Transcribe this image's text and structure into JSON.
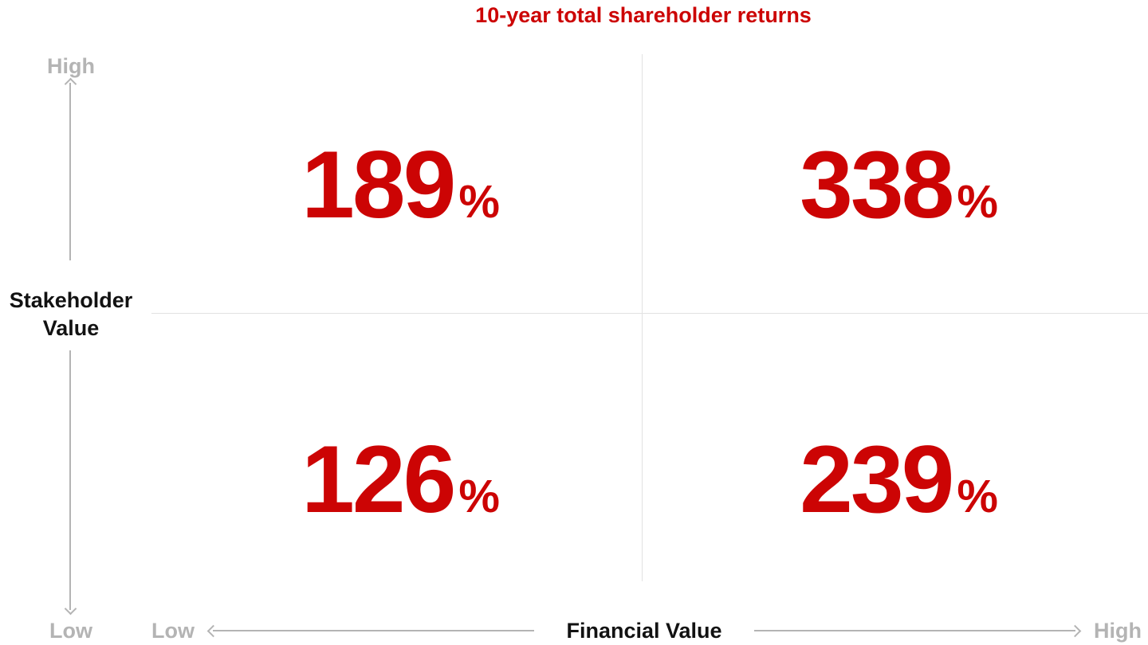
{
  "title": "10-year total shareholder returns",
  "colors": {
    "accent_red": "#cc0404",
    "gray_label": "#b4b4b4",
    "arrow_gray": "#b4b4b4",
    "divider_gray": "#e2e2e2",
    "text_black": "#121212"
  },
  "y_axis": {
    "label_line1": "Stakeholder",
    "label_line2": "Value",
    "high": "High",
    "low": "Low"
  },
  "x_axis": {
    "label": "Financial Value",
    "low": "Low",
    "high": "High"
  },
  "quadrants": {
    "top_left": {
      "value": "189",
      "unit": "%"
    },
    "top_right": {
      "value": "338",
      "unit": "%"
    },
    "bottom_left": {
      "value": "126",
      "unit": "%"
    },
    "bottom_right": {
      "value": "239",
      "unit": "%"
    }
  },
  "chart_data": {
    "type": "heatmap",
    "subtype": "2x2-quadrant-matrix",
    "title": "10-year total shareholder returns",
    "xlabel": "Financial Value",
    "ylabel": "Stakeholder Value",
    "x_categories": [
      "Low",
      "High"
    ],
    "y_categories": [
      "High",
      "Low"
    ],
    "unit": "%",
    "values": [
      {
        "financial_value": "Low",
        "stakeholder_value": "High",
        "return_pct": 189,
        "position": "top-left"
      },
      {
        "financial_value": "High",
        "stakeholder_value": "High",
        "return_pct": 338,
        "position": "top-right"
      },
      {
        "financial_value": "Low",
        "stakeholder_value": "Low",
        "return_pct": 126,
        "position": "bottom-left"
      },
      {
        "financial_value": "High",
        "stakeholder_value": "Low",
        "return_pct": 239,
        "position": "bottom-right"
      }
    ],
    "layout": {
      "grid": "quadrant dividers only",
      "legend": "none",
      "value_color": "#cc0404"
    }
  }
}
